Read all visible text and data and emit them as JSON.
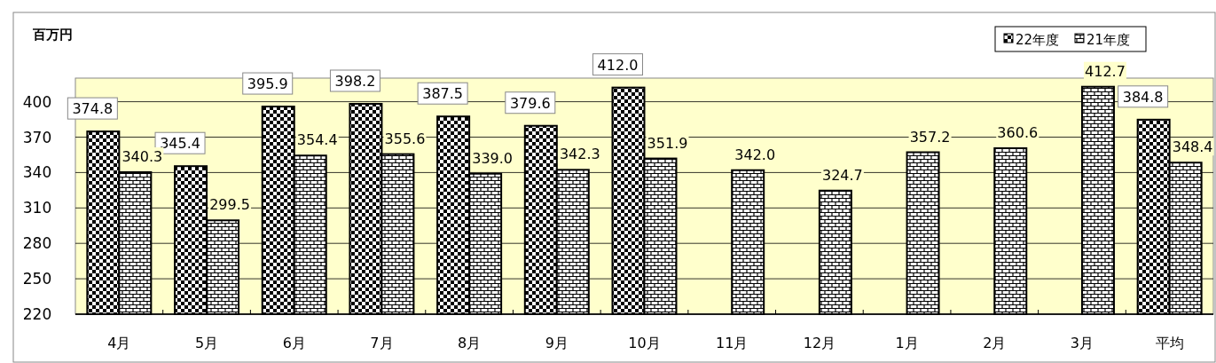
{
  "chart_data": {
    "type": "bar",
    "ylabel": "百万円",
    "categories": [
      "4月",
      "5月",
      "6月",
      "7月",
      "8月",
      "9月",
      "10月",
      "11月",
      "12月",
      "1月",
      "2月",
      "3月",
      "平均"
    ],
    "series": [
      {
        "name": "22年度",
        "color": "#000000",
        "values": [
          374.8,
          345.4,
          395.9,
          398.2,
          387.5,
          379.6,
          412.0,
          null,
          null,
          null,
          null,
          null,
          384.8
        ],
        "value_labels": [
          "374.8",
          "345.4",
          "395.9",
          "398.2",
          "387.5",
          "379.6",
          "412.0",
          null,
          null,
          null,
          null,
          null,
          "384.8"
        ]
      },
      {
        "name": "21年度",
        "color": "#000000",
        "values": [
          340.3,
          299.5,
          354.4,
          355.6,
          339.0,
          342.3,
          351.9,
          342.0,
          324.7,
          357.2,
          360.6,
          412.7,
          348.4
        ],
        "value_labels": [
          "340.3",
          "299.5",
          "354.4",
          "355.6",
          "339.0",
          "342.3",
          "351.9",
          "342.0",
          "324.7",
          "357.2",
          "360.6",
          "412.7",
          "348.4"
        ]
      }
    ],
    "ylim": [
      220,
      420
    ],
    "yticks": [
      220,
      250,
      280,
      310,
      340,
      370,
      400
    ],
    "grid": "y",
    "legend": "top right",
    "data_labels": true
  }
}
